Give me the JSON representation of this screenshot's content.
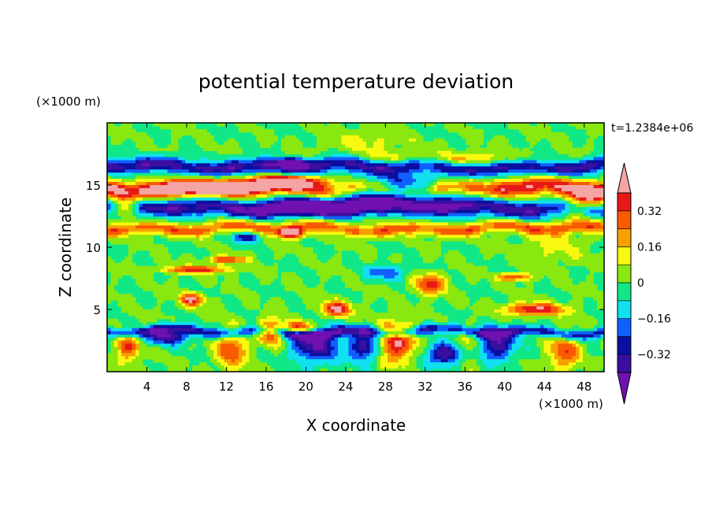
{
  "chart_data": {
    "type": "heatmap",
    "title": "potential temperature deviation",
    "xlabel": "X coordinate",
    "ylabel": "Z coordinate",
    "x_units": "(×1000 m)",
    "y_units": "(×1000 m)",
    "time_label": "t=1.2384e+06",
    "xlim": [
      0,
      50
    ],
    "ylim": [
      0,
      20
    ],
    "x_ticks": [
      4,
      8,
      12,
      16,
      20,
      24,
      28,
      32,
      36,
      40,
      44,
      48
    ],
    "y_ticks": [
      5,
      10,
      15
    ],
    "colorbar": {
      "levels": [
        -0.4,
        -0.32,
        -0.24,
        -0.16,
        -0.08,
        0,
        0.08,
        0.16,
        0.24,
        0.32,
        0.4
      ],
      "tick_labels": [
        "0.32",
        "0.16",
        "0",
        "−0.16",
        "−0.32"
      ],
      "tick_values": [
        0.32,
        0.16,
        0,
        -0.16,
        -0.32
      ],
      "colors": [
        "#7010b0",
        "#3a0fa0",
        "#0a0fa0",
        "#1060ff",
        "#10e0f0",
        "#10e888",
        "#88e810",
        "#f8f810",
        "#f8a000",
        "#f85a00",
        "#e81818",
        "#f4a4a4"
      ]
    },
    "features": [
      {
        "kind": "band",
        "value": -0.36,
        "x": [
          0,
          50
        ],
        "z_center": 16.5,
        "z_half": 0.6
      },
      {
        "kind": "band",
        "value": 0.4,
        "x": [
          0,
          50
        ],
        "z_center": 14.7,
        "z_half": 0.7
      },
      {
        "kind": "band",
        "value": -0.36,
        "x": [
          0,
          50
        ],
        "z_center": 13.2,
        "z_half": 0.7
      },
      {
        "kind": "band",
        "value": 0.28,
        "x": [
          0,
          50
        ],
        "z_center": 11.5,
        "z_half": 0.5
      },
      {
        "kind": "band",
        "value": -0.3,
        "x": [
          0,
          50
        ],
        "z_center": 3.2,
        "z_half": 0.4
      },
      {
        "kind": "blob",
        "value": -0.42,
        "x": 29,
        "z": 14.5,
        "rx": 7,
        "rz": 1.3
      },
      {
        "kind": "blob",
        "value": 0.42,
        "x": 10,
        "z": 14.8,
        "rx": 5,
        "rz": 0.5
      },
      {
        "kind": "blob",
        "value": 0.42,
        "x": 18.5,
        "z": 15.3,
        "rx": 4,
        "rz": 0.5
      },
      {
        "kind": "blob",
        "value": 0.42,
        "x": 48,
        "z": 13.6,
        "rx": 2.5,
        "rz": 0.9
      },
      {
        "kind": "blob",
        "value": 0.42,
        "x": 1.5,
        "z": 13.5,
        "rx": 1.5,
        "rz": 0.8
      },
      {
        "kind": "blob",
        "value": -0.42,
        "x": 20,
        "z": 13.2,
        "rx": 4.5,
        "rz": 0.6
      },
      {
        "kind": "blob",
        "value": 0.42,
        "x": 18.5,
        "z": 11.1,
        "rx": 1.3,
        "rz": 0.4
      },
      {
        "kind": "blob",
        "value": 0.36,
        "x": 9,
        "z": 8.2,
        "rx": 3.5,
        "rz": 0.3
      },
      {
        "kind": "blob",
        "value": 0.36,
        "x": 12,
        "z": 9.0,
        "rx": 1.8,
        "rz": 0.3
      },
      {
        "kind": "blob",
        "value": 0.36,
        "x": 32.5,
        "z": 7.0,
        "rx": 1.5,
        "rz": 0.8
      },
      {
        "kind": "blob",
        "value": 0.36,
        "x": 41,
        "z": 7.6,
        "rx": 1.5,
        "rz": 0.3
      },
      {
        "kind": "blob",
        "value": 0.42,
        "x": 23,
        "z": 5.0,
        "rx": 1.5,
        "rz": 0.6
      },
      {
        "kind": "blob",
        "value": 0.42,
        "x": 8.5,
        "z": 5.8,
        "rx": 1.2,
        "rz": 0.5
      },
      {
        "kind": "blob",
        "value": 0.42,
        "x": 43,
        "z": 5.0,
        "rx": 3,
        "rz": 0.5
      },
      {
        "kind": "blob",
        "value": 0.42,
        "x": 16.5,
        "z": 3.2,
        "rx": 1.2,
        "rz": 1.0
      },
      {
        "kind": "blob",
        "value": 0.42,
        "x": 29,
        "z": 2.4,
        "rx": 2,
        "rz": 1.6
      },
      {
        "kind": "blob",
        "value": 0.42,
        "x": 19.5,
        "z": 3.6,
        "rx": 1.5,
        "rz": 0.5
      },
      {
        "kind": "blob",
        "value": -0.4,
        "x": 21,
        "z": 2.2,
        "rx": 2.5,
        "rz": 1.5
      },
      {
        "kind": "blob",
        "value": -0.4,
        "x": 6,
        "z": 2.8,
        "rx": 2,
        "rz": 0.6
      },
      {
        "kind": "blob",
        "value": -0.4,
        "x": 39,
        "z": 2.2,
        "rx": 2,
        "rz": 1.3
      },
      {
        "kind": "blob",
        "value": -0.4,
        "x": 34,
        "z": 1.4,
        "rx": 2,
        "rz": 0.9
      },
      {
        "kind": "blob",
        "value": -0.4,
        "x": 26,
        "z": 2.0,
        "rx": 1.5,
        "rz": 1.2
      },
      {
        "kind": "blob",
        "value": 0.32,
        "x": 12.5,
        "z": 1.8,
        "rx": 1.5,
        "rz": 1.5
      },
      {
        "kind": "blob",
        "value": 0.32,
        "x": 2,
        "z": 2.0,
        "rx": 1.2,
        "rz": 1.2
      },
      {
        "kind": "blob",
        "value": 0.32,
        "x": 46,
        "z": 1.6,
        "rx": 1.5,
        "rz": 1.4
      },
      {
        "kind": "blob",
        "value": 0.2,
        "x": 36.5,
        "z": 2.0,
        "rx": 1.5,
        "rz": 1.5
      },
      {
        "kind": "blob",
        "value": -0.24,
        "x": 28,
        "z": 8.0,
        "rx": 2,
        "rz": 0.6
      },
      {
        "kind": "blob",
        "value": -0.3,
        "x": 14,
        "z": 10.8,
        "rx": 1.5,
        "rz": 0.4
      },
      {
        "kind": "blob",
        "value": -0.36,
        "x": 18.5,
        "z": 16.8,
        "rx": 2,
        "rz": 0.4
      },
      {
        "kind": "blob",
        "value": 0.24,
        "x": 34,
        "z": 17.0,
        "rx": 8,
        "rz": 0.6
      },
      {
        "kind": "blob",
        "value": 0.1,
        "x": 45,
        "z": 10.0,
        "rx": 3,
        "rz": 1.5
      },
      {
        "kind": "blob",
        "value": 0.1,
        "x": 26,
        "z": 18.5,
        "rx": 4,
        "rz": 1.0
      }
    ]
  }
}
